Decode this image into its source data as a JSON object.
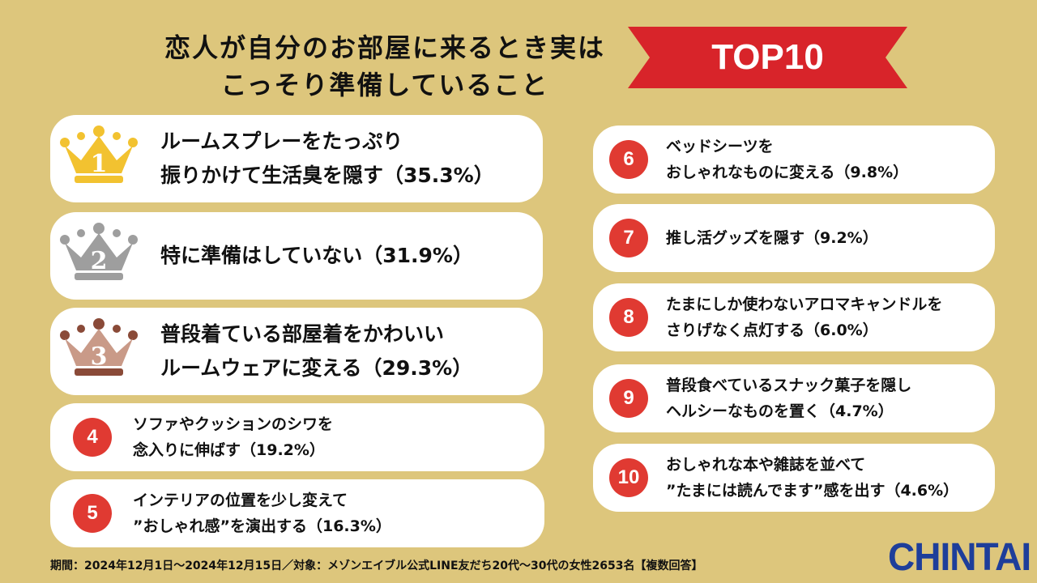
{
  "header": {
    "title_line1": "恋人が自分のお部屋に来るとき実は",
    "title_line2": "こっそり準備していること",
    "badge": "TOP10"
  },
  "items": [
    {
      "rank": "1",
      "line1": "ルームスプレーをたっぷり",
      "line2": "振りかけて生活臭を隠す（35.3%）",
      "crown_color": "#F2C230"
    },
    {
      "rank": "2",
      "line1": "特に準備はしていない（31.9%）",
      "line2": "",
      "crown_color": "#9E9E9E"
    },
    {
      "rank": "3",
      "line1": "普段着ている部屋着をかわいい",
      "line2": "ルームウェアに変える（29.3%）",
      "crown_color": "#B98572"
    },
    {
      "rank": "4",
      "line1": "ソファやクッションのシワを",
      "line2": "念入りに伸ばす（19.2%）"
    },
    {
      "rank": "5",
      "line1": "インテリアの位置を少し変えて",
      "line2": "”おしゃれ感”を演出する（16.3%）"
    },
    {
      "rank": "6",
      "line1": "ベッドシーツを",
      "line2": "おしゃれなものに変える（9.8%）"
    },
    {
      "rank": "7",
      "line1": "推し活グッズを隠す（9.2%）",
      "line2": ""
    },
    {
      "rank": "8",
      "line1": "たまにしか使わないアロマキャンドルを",
      "line2": "さりげなく点灯する（6.0%）"
    },
    {
      "rank": "9",
      "line1": "普段食べているスナック菓子を隠し",
      "line2": "ヘルシーなものを置く（4.7%）"
    },
    {
      "rank": "10",
      "line1": "おしゃれな本や雑誌を並べて",
      "line2": "”たまには読んでます”感を出す（4.6%）"
    }
  ],
  "footer": {
    "text": "期間：2024年12月1日〜2024年12月15日／対象：メゾンエイブル公式LINE友だち20代〜30代の女性2653名【複数回答】"
  },
  "logo": {
    "text": "CHINTAI"
  },
  "colors": {
    "background": "#DDC67C",
    "accent_red": "#E03A32",
    "ribbon_red": "#D8242A",
    "logo_blue": "#1E3E9A"
  }
}
